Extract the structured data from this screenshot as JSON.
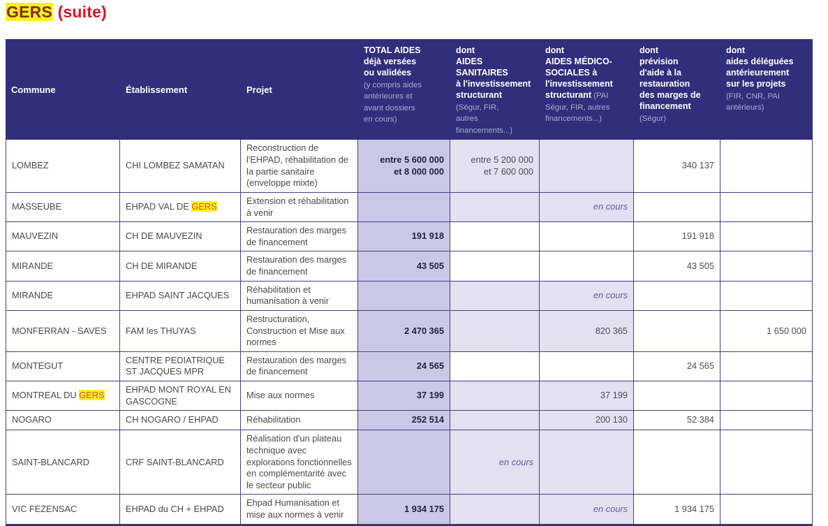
{
  "search_term": "GERS",
  "title": {
    "highlighted": "GERS",
    "rest": " (suite)"
  },
  "colors": {
    "header_bg": "#312e7b",
    "border": "#43408f",
    "total_bg": "#cbc8e5",
    "tint_bg": "#e2e0f1",
    "en_cours": "#5f5d9e",
    "body_text": "#4a4a4a",
    "num_text": "#4d4d55",
    "num_bold": "#23233f",
    "title_red": "#e0111f",
    "hl_bg": "#f5f122",
    "hl_text_title": "#8a2c0f",
    "hl_text_cell": "#e8512f",
    "header_sub": "#aca9d6"
  },
  "table": {
    "columns": [
      {
        "key": "commune",
        "label": "Commune",
        "sub": ""
      },
      {
        "key": "etablissement",
        "label": "Établissement",
        "sub": ""
      },
      {
        "key": "projet",
        "label": "Projet",
        "sub": ""
      },
      {
        "key": "total-aides",
        "label": "TOTAL AIDES\ndéjà versées\nou validées",
        "sub": "\n(y compris aides\nantérieures et\navant dossiers\nen cours)"
      },
      {
        "key": "aides-sanitaires",
        "label": "dont\nAIDES SANITAIRES\nà l'investissement\nstructurant",
        "sub": "\n(Ségur, FIR,\nautres\nfinancements...)"
      },
      {
        "key": "aides-medico-sociales",
        "label": "dont\nAIDES MÉDICO-\nSOCIALES à\nl'investissement\nstructurant",
        "sub": " (PAI\nSégur, FIR, autres\nfinancements...)"
      },
      {
        "key": "prevision-restauration-marges",
        "label": "dont\nprévision\nd'aide à la\nrestauration\ndes marges de\nfinancement",
        "sub": "\n(Ségur)"
      },
      {
        "key": "aides-deleguees",
        "label": "dont\naides déléguées\nantérieurement\nsur les projets",
        "sub": "\n(FIR, CNR, PAI\nantérieurs)"
      }
    ],
    "rows": [
      {
        "commune": "LOMBEZ",
        "etablissement": "CHI LOMBEZ SAMATAN",
        "projet": "Reconstruction de l'EHPAD, réhabilitation de la partie sanitaire (enveloppe mixte)",
        "total": {
          "text": "entre 5 600 000\net 8 000 000"
        },
        "sanitaires": {
          "text": "entre 5 200 000\net 7 600 000",
          "tint": true
        },
        "medico": {
          "text": "",
          "tint": true
        },
        "prevision": {
          "text": "340 137"
        },
        "deleguees": {
          "text": ""
        }
      },
      {
        "commune": "MASSEUBE",
        "etablissement": "EHPAD VAL DE GERS",
        "projet": "Extension et réhabilitation à venir",
        "total": {
          "text": ""
        },
        "sanitaires": {
          "text": "",
          "tint": true
        },
        "medico": {
          "text": "en cours",
          "tint": true,
          "en_cours": true
        },
        "prevision": {
          "text": ""
        },
        "deleguees": {
          "text": ""
        }
      },
      {
        "commune": "MAUVEZIN",
        "etablissement": "CH DE MAUVEZIN",
        "projet": "Restauration des marges de financement",
        "total": {
          "text": "191 918"
        },
        "sanitaires": {
          "text": ""
        },
        "medico": {
          "text": ""
        },
        "prevision": {
          "text": "191 918"
        },
        "deleguees": {
          "text": ""
        }
      },
      {
        "commune": "MIRANDE",
        "etablissement": "CH DE MIRANDE",
        "projet": "Restauration des marges de financement",
        "total": {
          "text": "43 505"
        },
        "sanitaires": {
          "text": ""
        },
        "medico": {
          "text": ""
        },
        "prevision": {
          "text": "43 505"
        },
        "deleguees": {
          "text": ""
        }
      },
      {
        "commune": "MIRANDE",
        "etablissement": "EHPAD SAINT JACQUES",
        "projet": "Réhabilitation et humanisation à venir",
        "total": {
          "text": ""
        },
        "sanitaires": {
          "text": "",
          "tint": true
        },
        "medico": {
          "text": "en cours",
          "tint": true,
          "en_cours": true
        },
        "prevision": {
          "text": ""
        },
        "deleguees": {
          "text": ""
        }
      },
      {
        "commune": "MONFERRAN - SAVES",
        "etablissement": "FAM les THUYAS",
        "projet": "Restructuration, Construction et Mise aux normes",
        "total": {
          "text": "2 470 365"
        },
        "sanitaires": {
          "text": "",
          "tint": true
        },
        "medico": {
          "text": "820 365",
          "tint": true
        },
        "prevision": {
          "text": ""
        },
        "deleguees": {
          "text": "1 650 000"
        }
      },
      {
        "commune": "MONTEGUT",
        "etablissement": "CENTRE PEDIATRIQUE ST JACQUES MPR",
        "projet": "Restauration des marges de financement",
        "total": {
          "text": "24 565"
        },
        "sanitaires": {
          "text": ""
        },
        "medico": {
          "text": ""
        },
        "prevision": {
          "text": "24 565"
        },
        "deleguees": {
          "text": ""
        }
      },
      {
        "commune": "MONTREAL DU GERS",
        "etablissement": "EHPAD MONT ROYAL EN GASCOGNE",
        "projet": "Mise aux normes",
        "total": {
          "text": "37 199"
        },
        "sanitaires": {
          "text": "",
          "tint": true
        },
        "medico": {
          "text": "37 199",
          "tint": true
        },
        "prevision": {
          "text": ""
        },
        "deleguees": {
          "text": ""
        }
      },
      {
        "commune": "NOGARO",
        "etablissement": "CH NOGARO / EHPAD",
        "projet": "Réhabilitation",
        "total": {
          "text": "252 514"
        },
        "sanitaires": {
          "text": "",
          "tint": true
        },
        "medico": {
          "text": "200 130",
          "tint": true
        },
        "prevision": {
          "text": "52 384"
        },
        "deleguees": {
          "text": ""
        }
      },
      {
        "commune": "SAINT-BLANCARD",
        "etablissement": "CRF SAINT-BLANCARD",
        "projet": "Réalisation d'un plateau technique avec explorations fonctionnelles en complémentarité avec le secteur public",
        "total": {
          "text": ""
        },
        "sanitaires": {
          "text": "en cours",
          "tint": true,
          "en_cours": true
        },
        "medico": {
          "text": "",
          "tint": true
        },
        "prevision": {
          "text": ""
        },
        "deleguees": {
          "text": ""
        }
      },
      {
        "commune": "VIC FEZENSAC",
        "etablissement": "EHPAD du CH + EHPAD",
        "projet": "Ehpad Humanisation et mise aux normes à venir",
        "total": {
          "text": "1 934 175"
        },
        "sanitaires": {
          "text": "",
          "tint": true
        },
        "medico": {
          "text": "en cours",
          "tint": true,
          "en_cours": true
        },
        "prevision": {
          "text": "1 934 175"
        },
        "deleguees": {
          "text": ""
        }
      }
    ]
  }
}
